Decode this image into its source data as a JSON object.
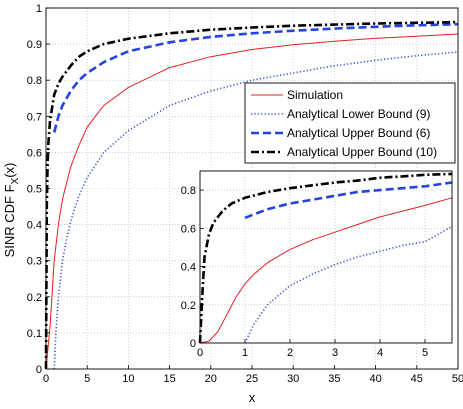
{
  "chart_data": [
    {
      "type": "line",
      "xlabel": "x",
      "ylabel": "SINR CDF F_X(x)",
      "xlim": [
        0,
        50
      ],
      "ylim": [
        0,
        1
      ],
      "xticks": [
        "0",
        "5",
        "10",
        "15",
        "20",
        "25",
        "30",
        "35",
        "40",
        "45",
        "50"
      ],
      "yticks": [
        "0",
        "0.1",
        "0.2",
        "0.3",
        "0.4",
        "0.5",
        "0.6",
        "0.7",
        "0.8",
        "0.9",
        "1"
      ],
      "grid": true,
      "legend_position": "center-right",
      "series": [
        {
          "name": "Simulation",
          "color": "#e8201f",
          "style": "solid",
          "x": [
            0,
            0.5,
            1,
            1.5,
            2,
            3,
            4,
            5,
            7,
            10,
            15,
            20,
            25,
            30,
            35,
            40,
            45,
            50
          ],
          "y": [
            0,
            0.12,
            0.3,
            0.4,
            0.47,
            0.56,
            0.62,
            0.67,
            0.73,
            0.78,
            0.835,
            0.865,
            0.885,
            0.898,
            0.908,
            0.916,
            0.922,
            0.928
          ]
        },
        {
          "name": "Analytical Lower Bound (9)",
          "color": "#3a4fe0",
          "style": "dotted",
          "x": [
            1,
            1.2,
            1.5,
            2,
            2.5,
            3,
            4,
            5,
            7,
            10,
            15,
            20,
            25,
            30,
            35,
            40,
            45,
            50
          ],
          "y": [
            0,
            0.1,
            0.2,
            0.3,
            0.36,
            0.41,
            0.48,
            0.53,
            0.6,
            0.66,
            0.73,
            0.77,
            0.8,
            0.82,
            0.84,
            0.855,
            0.868,
            0.878
          ]
        },
        {
          "name": "Analytical Upper Bound (6)",
          "color": "#2443e0",
          "style": "dashed",
          "x": [
            1,
            1.5,
            2,
            3,
            4,
            5,
            7,
            10,
            15,
            20,
            25,
            30,
            35,
            40,
            45,
            50
          ],
          "y": [
            0.655,
            0.7,
            0.73,
            0.77,
            0.8,
            0.82,
            0.85,
            0.88,
            0.905,
            0.92,
            0.93,
            0.937,
            0.943,
            0.948,
            0.952,
            0.955
          ]
        },
        {
          "name": "Analytical Upper Bound (10)",
          "color": "#000000",
          "style": "dashdot",
          "x": [
            0,
            0.1,
            0.2,
            0.3,
            0.5,
            1,
            1.5,
            2,
            3,
            4,
            5,
            7,
            10,
            15,
            20,
            25,
            30,
            35,
            40,
            45,
            50
          ],
          "y": [
            0,
            0.45,
            0.57,
            0.63,
            0.69,
            0.76,
            0.79,
            0.81,
            0.84,
            0.865,
            0.88,
            0.9,
            0.915,
            0.93,
            0.94,
            0.946,
            0.951,
            0.954,
            0.957,
            0.959,
            0.961
          ]
        }
      ]
    },
    {
      "type": "line",
      "xlabel": "",
      "ylabel": "",
      "xlim": [
        0,
        5.6
      ],
      "ylim": [
        0,
        0.9
      ],
      "xticks": [
        "0",
        "1",
        "2",
        "3",
        "4",
        "5"
      ],
      "yticks": [
        "0",
        "0.2",
        "0.4",
        "0.6",
        "0.8"
      ],
      "grid": true,
      "series": [
        {
          "color": "#e8201f",
          "style": "solid",
          "x": [
            0,
            0.2,
            0.4,
            0.6,
            0.8,
            1.0,
            1.2,
            1.5,
            2,
            2.5,
            3,
            3.5,
            4,
            4.5,
            5,
            5.6
          ],
          "y": [
            0,
            0.01,
            0.06,
            0.15,
            0.24,
            0.31,
            0.36,
            0.42,
            0.49,
            0.54,
            0.58,
            0.62,
            0.66,
            0.69,
            0.72,
            0.76
          ]
        },
        {
          "color": "#3a4fe0",
          "style": "dotted",
          "x": [
            1,
            1.2,
            1.5,
            2,
            2.5,
            3,
            3.5,
            4,
            4.5,
            5,
            5.6
          ],
          "y": [
            0,
            0.1,
            0.2,
            0.3,
            0.36,
            0.41,
            0.45,
            0.48,
            0.51,
            0.53,
            0.61
          ]
        },
        {
          "color": "#2443e0",
          "style": "dashed",
          "x": [
            1,
            1.5,
            2,
            2.5,
            3,
            3.5,
            4,
            4.5,
            5,
            5.6
          ],
          "y": [
            0.655,
            0.7,
            0.73,
            0.75,
            0.77,
            0.79,
            0.8,
            0.81,
            0.82,
            0.84
          ]
        },
        {
          "color": "#000000",
          "style": "dashdot",
          "x": [
            0,
            0.05,
            0.1,
            0.2,
            0.3,
            0.5,
            0.7,
            1,
            1.5,
            2,
            2.5,
            3,
            3.5,
            4,
            4.5,
            5,
            5.6
          ],
          "y": [
            0,
            0.25,
            0.45,
            0.57,
            0.63,
            0.69,
            0.73,
            0.76,
            0.79,
            0.81,
            0.825,
            0.84,
            0.85,
            0.865,
            0.872,
            0.88,
            0.885
          ]
        }
      ]
    }
  ]
}
